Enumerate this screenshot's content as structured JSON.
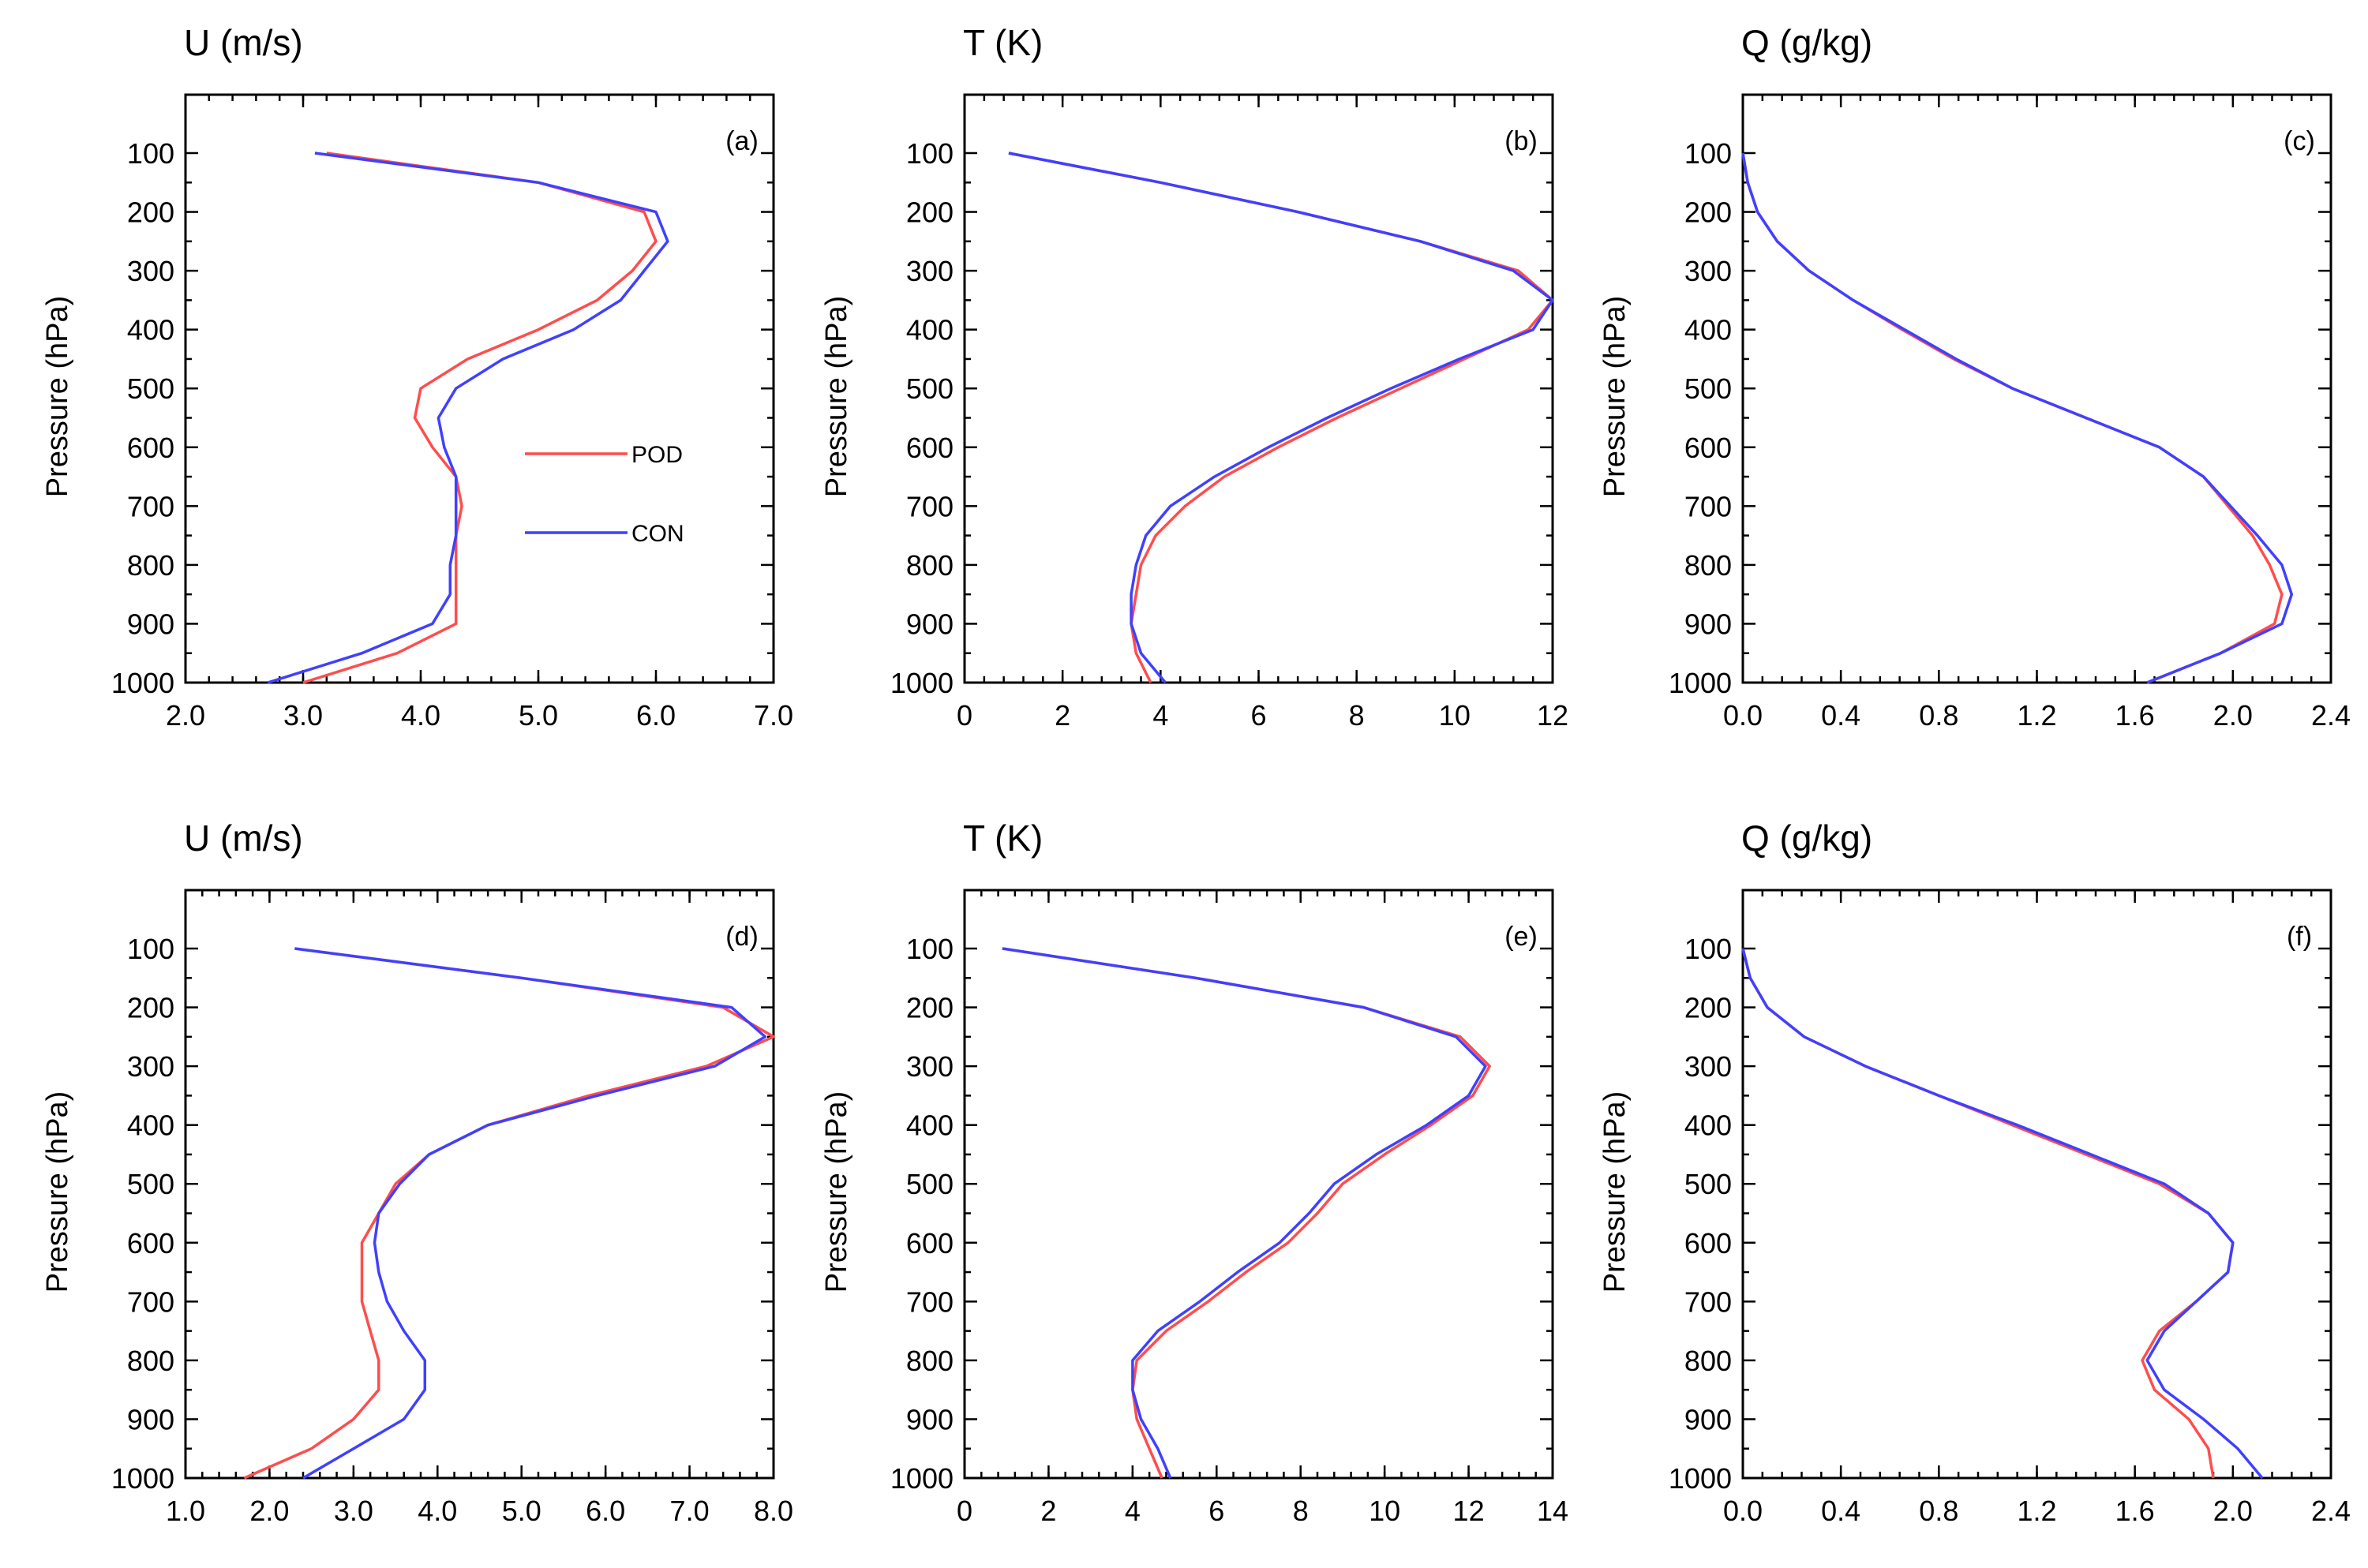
{
  "figure": {
    "colors": {
      "POD": "#ff4d4d",
      "CON": "#4040ff"
    },
    "legend_panel": 0,
    "legend": [
      {
        "series": "POD",
        "label": "POD"
      },
      {
        "series": "CON",
        "label": "CON"
      }
    ]
  },
  "chart_data": [
    {
      "type": "line",
      "title": "U (m/s)",
      "panel_label": "(a)",
      "ylabel": "Pressure (hPa)",
      "xlim": [
        2.0,
        7.0
      ],
      "ylim": [
        0,
        1000
      ],
      "y_inverted": true,
      "xticks": [
        2.0,
        3.0,
        4.0,
        5.0,
        6.0,
        7.0
      ],
      "xtick_labels": [
        "2.0",
        "3.0",
        "4.0",
        "5.0",
        "6.0",
        "7.0"
      ],
      "yticks": [
        100,
        200,
        300,
        400,
        500,
        600,
        700,
        800,
        900,
        1000
      ],
      "ytick_labels": [
        "100",
        "200",
        "300",
        "400",
        "500",
        "600",
        "700",
        "800",
        "900",
        "1000"
      ],
      "y": [
        100,
        150,
        200,
        250,
        300,
        350,
        400,
        450,
        500,
        550,
        600,
        650,
        700,
        750,
        800,
        850,
        900,
        950,
        1000
      ],
      "series": [
        {
          "name": "POD",
          "values": [
            3.2,
            5.0,
            5.9,
            6.0,
            5.8,
            5.5,
            5.0,
            4.4,
            4.0,
            3.95,
            4.1,
            4.3,
            4.35,
            4.3,
            4.3,
            4.3,
            4.3,
            3.8,
            3.0
          ]
        },
        {
          "name": "CON",
          "values": [
            3.1,
            5.0,
            6.0,
            6.1,
            5.9,
            5.7,
            5.3,
            4.7,
            4.3,
            4.15,
            4.2,
            4.3,
            4.3,
            4.3,
            4.25,
            4.25,
            4.1,
            3.5,
            2.7
          ]
        }
      ]
    },
    {
      "type": "line",
      "title": "T (K)",
      "panel_label": "(b)",
      "ylabel": "Pressure (hPa)",
      "xlim": [
        0,
        12
      ],
      "ylim": [
        0,
        1000
      ],
      "y_inverted": true,
      "xticks": [
        0,
        2,
        4,
        6,
        8,
        10,
        12
      ],
      "xtick_labels": [
        "0",
        "2",
        "4",
        "6",
        "8",
        "10",
        "12"
      ],
      "yticks": [
        100,
        200,
        300,
        400,
        500,
        600,
        700,
        800,
        900,
        1000
      ],
      "ytick_labels": [
        "100",
        "200",
        "300",
        "400",
        "500",
        "600",
        "700",
        "800",
        "900",
        "1000"
      ],
      "y": [
        100,
        150,
        200,
        250,
        300,
        350,
        400,
        450,
        500,
        550,
        600,
        650,
        700,
        750,
        800,
        850,
        900,
        950,
        1000
      ],
      "series": [
        {
          "name": "POD",
          "values": [
            0.9,
            4.0,
            6.8,
            9.3,
            11.3,
            12.0,
            11.5,
            10.2,
            8.9,
            7.6,
            6.4,
            5.3,
            4.5,
            3.9,
            3.6,
            3.5,
            3.4,
            3.5,
            3.8
          ]
        },
        {
          "name": "CON",
          "values": [
            0.9,
            4.0,
            6.8,
            9.3,
            11.2,
            12.0,
            11.6,
            10.1,
            8.7,
            7.4,
            6.2,
            5.1,
            4.2,
            3.7,
            3.5,
            3.4,
            3.4,
            3.6,
            4.1
          ]
        }
      ]
    },
    {
      "type": "line",
      "title": "Q (g/kg)",
      "panel_label": "(c)",
      "ylabel": "Pressure (hPa)",
      "xlim": [
        0.0,
        2.4
      ],
      "ylim": [
        0,
        1000
      ],
      "y_inverted": true,
      "xticks": [
        0.0,
        0.4,
        0.8,
        1.2,
        1.6,
        2.0,
        2.4
      ],
      "xtick_labels": [
        "0.0",
        "0.4",
        "0.8",
        "1.2",
        "1.6",
        "2.0",
        "2.4"
      ],
      "yticks": [
        100,
        200,
        300,
        400,
        500,
        600,
        700,
        800,
        900,
        1000
      ],
      "ytick_labels": [
        "100",
        "200",
        "300",
        "400",
        "500",
        "600",
        "700",
        "800",
        "900",
        "1000"
      ],
      "y": [
        100,
        150,
        200,
        250,
        300,
        350,
        400,
        450,
        500,
        550,
        600,
        650,
        700,
        750,
        800,
        850,
        900,
        950,
        1000
      ],
      "series": [
        {
          "name": "POD",
          "values": [
            0.0,
            0.02,
            0.06,
            0.14,
            0.27,
            0.45,
            0.65,
            0.86,
            1.1,
            1.4,
            1.7,
            1.88,
            1.98,
            2.08,
            2.15,
            2.2,
            2.17,
            1.95,
            1.65
          ]
        },
        {
          "name": "CON",
          "values": [
            0.0,
            0.02,
            0.06,
            0.14,
            0.27,
            0.45,
            0.66,
            0.87,
            1.1,
            1.4,
            1.7,
            1.88,
            1.99,
            2.1,
            2.2,
            2.24,
            2.2,
            1.95,
            1.65
          ]
        }
      ]
    },
    {
      "type": "line",
      "title": "U (m/s)",
      "panel_label": "(d)",
      "ylabel": "Pressure (hPa)",
      "xlim": [
        1.0,
        8.0
      ],
      "ylim": [
        0,
        1000
      ],
      "y_inverted": true,
      "xticks": [
        1.0,
        2.0,
        3.0,
        4.0,
        5.0,
        6.0,
        7.0,
        8.0
      ],
      "xtick_labels": [
        "1.0",
        "2.0",
        "3.0",
        "4.0",
        "5.0",
        "6.0",
        "7.0",
        "8.0"
      ],
      "yticks": [
        100,
        200,
        300,
        400,
        500,
        600,
        700,
        800,
        900,
        1000
      ],
      "ytick_labels": [
        "100",
        "200",
        "300",
        "400",
        "500",
        "600",
        "700",
        "800",
        "900",
        "1000"
      ],
      "y": [
        100,
        150,
        200,
        250,
        300,
        350,
        400,
        450,
        500,
        550,
        600,
        650,
        700,
        750,
        800,
        850,
        900,
        950,
        1000
      ],
      "series": [
        {
          "name": "POD",
          "values": [
            2.3,
            5.0,
            7.4,
            8.0,
            7.2,
            5.8,
            4.6,
            3.9,
            3.5,
            3.3,
            3.1,
            3.1,
            3.1,
            3.2,
            3.3,
            3.3,
            3.0,
            2.5,
            1.7
          ]
        },
        {
          "name": "CON",
          "values": [
            2.3,
            5.0,
            7.5,
            7.9,
            7.3,
            5.9,
            4.6,
            3.9,
            3.55,
            3.3,
            3.25,
            3.3,
            3.4,
            3.6,
            3.85,
            3.85,
            3.6,
            3.0,
            2.4
          ]
        }
      ]
    },
    {
      "type": "line",
      "title": "T (K)",
      "panel_label": "(e)",
      "ylabel": "Pressure (hPa)",
      "xlim": [
        0,
        14
      ],
      "ylim": [
        0,
        1000
      ],
      "y_inverted": true,
      "xticks": [
        0,
        2,
        4,
        6,
        8,
        10,
        12,
        14
      ],
      "xtick_labels": [
        "0",
        "2",
        "4",
        "6",
        "8",
        "10",
        "12",
        "14"
      ],
      "yticks": [
        100,
        200,
        300,
        400,
        500,
        600,
        700,
        800,
        900,
        1000
      ],
      "ytick_labels": [
        "100",
        "200",
        "300",
        "400",
        "500",
        "600",
        "700",
        "800",
        "900",
        "1000"
      ],
      "y": [
        100,
        150,
        200,
        250,
        300,
        350,
        400,
        450,
        500,
        550,
        600,
        650,
        700,
        750,
        800,
        850,
        900,
        950,
        1000
      ],
      "series": [
        {
          "name": "POD",
          "values": [
            0.9,
            5.5,
            9.5,
            11.8,
            12.5,
            12.1,
            11.1,
            10.0,
            9.0,
            8.4,
            7.7,
            6.7,
            5.8,
            4.8,
            4.1,
            4.0,
            4.1,
            4.4,
            4.7
          ]
        },
        {
          "name": "CON",
          "values": [
            0.9,
            5.5,
            9.5,
            11.7,
            12.4,
            12.0,
            11.0,
            9.8,
            8.8,
            8.2,
            7.5,
            6.5,
            5.6,
            4.6,
            4.0,
            4.0,
            4.2,
            4.6,
            4.9
          ]
        }
      ]
    },
    {
      "type": "line",
      "title": "Q (g/kg)",
      "panel_label": "(f)",
      "ylabel": "Pressure (hPa)",
      "xlim": [
        0.0,
        2.4
      ],
      "ylim": [
        0,
        1000
      ],
      "y_inverted": true,
      "xticks": [
        0.0,
        0.4,
        0.8,
        1.2,
        1.6,
        2.0,
        2.4
      ],
      "xtick_labels": [
        "0.0",
        "0.4",
        "0.8",
        "1.2",
        "1.6",
        "2.0",
        "2.4"
      ],
      "yticks": [
        100,
        200,
        300,
        400,
        500,
        600,
        700,
        800,
        900,
        1000
      ],
      "ytick_labels": [
        "100",
        "200",
        "300",
        "400",
        "500",
        "600",
        "700",
        "800",
        "900",
        "1000"
      ],
      "y": [
        100,
        150,
        200,
        250,
        300,
        350,
        400,
        450,
        500,
        550,
        600,
        650,
        700,
        750,
        800,
        850,
        900,
        950,
        1000
      ],
      "series": [
        {
          "name": "POD",
          "values": [
            0.0,
            0.03,
            0.1,
            0.25,
            0.5,
            0.8,
            1.1,
            1.4,
            1.7,
            1.9,
            2.0,
            1.98,
            1.85,
            1.7,
            1.63,
            1.68,
            1.82,
            1.9,
            1.92
          ]
        },
        {
          "name": "CON",
          "values": [
            0.0,
            0.03,
            0.1,
            0.25,
            0.5,
            0.8,
            1.12,
            1.42,
            1.72,
            1.9,
            2.0,
            1.98,
            1.85,
            1.72,
            1.65,
            1.72,
            1.88,
            2.02,
            2.12
          ]
        }
      ]
    }
  ]
}
